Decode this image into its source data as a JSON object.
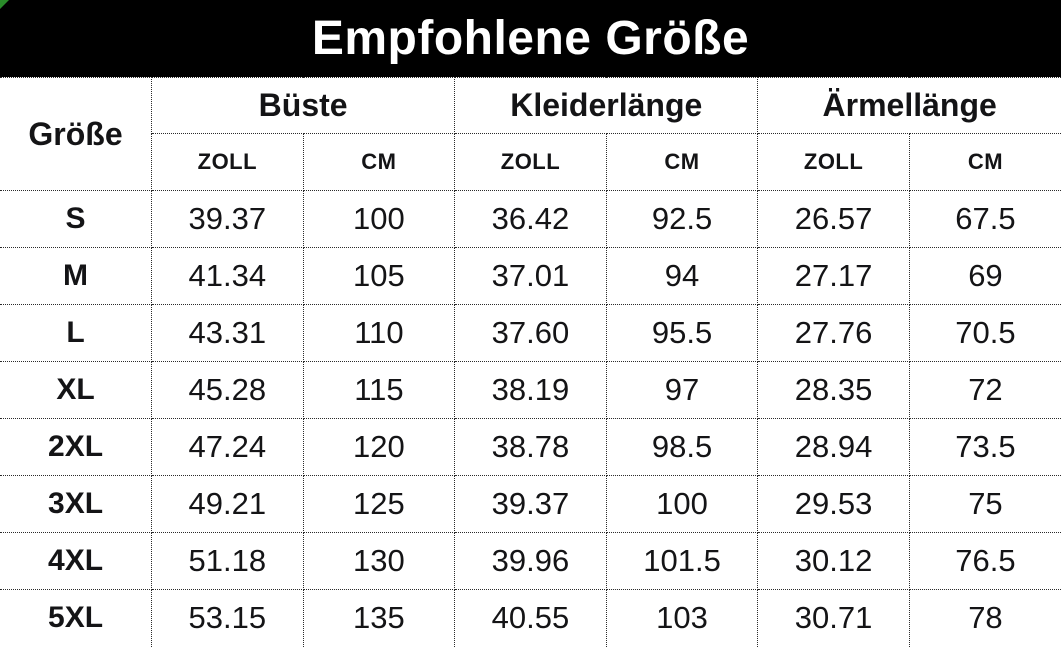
{
  "title": "Empfohlene Größe",
  "colors": {
    "banner_bg": "#000000",
    "banner_text": "#ffffff",
    "text": "#141416",
    "border": "#2b2b2b",
    "corner_marker": "#2a8c2a",
    "cell_bg": "#ffffff"
  },
  "table": {
    "corner_header": "Größe",
    "groups": [
      {
        "label": "Büste"
      },
      {
        "label": "Kleiderlänge"
      },
      {
        "label": "Ärmellänge"
      }
    ],
    "sub_headers": [
      "ZOLL",
      "CM",
      "ZOLL",
      "CM",
      "ZOLL",
      "CM"
    ],
    "rows": [
      {
        "size": "S",
        "values": [
          "39.37",
          "100",
          "36.42",
          "92.5",
          "26.57",
          "67.5"
        ]
      },
      {
        "size": "M",
        "values": [
          "41.34",
          "105",
          "37.01",
          "94",
          "27.17",
          "69"
        ]
      },
      {
        "size": "L",
        "values": [
          "43.31",
          "110",
          "37.60",
          "95.5",
          "27.76",
          "70.5"
        ]
      },
      {
        "size": "XL",
        "values": [
          "45.28",
          "115",
          "38.19",
          "97",
          "28.35",
          "72"
        ]
      },
      {
        "size": "2XL",
        "values": [
          "47.24",
          "120",
          "38.78",
          "98.5",
          "28.94",
          "73.5"
        ]
      },
      {
        "size": "3XL",
        "values": [
          "49.21",
          "125",
          "39.37",
          "100",
          "29.53",
          "75"
        ]
      },
      {
        "size": "4XL",
        "values": [
          "51.18",
          "130",
          "39.96",
          "101.5",
          "30.12",
          "76.5"
        ]
      },
      {
        "size": "5XL",
        "values": [
          "53.15",
          "135",
          "40.55",
          "103",
          "30.71",
          "78"
        ]
      }
    ]
  }
}
